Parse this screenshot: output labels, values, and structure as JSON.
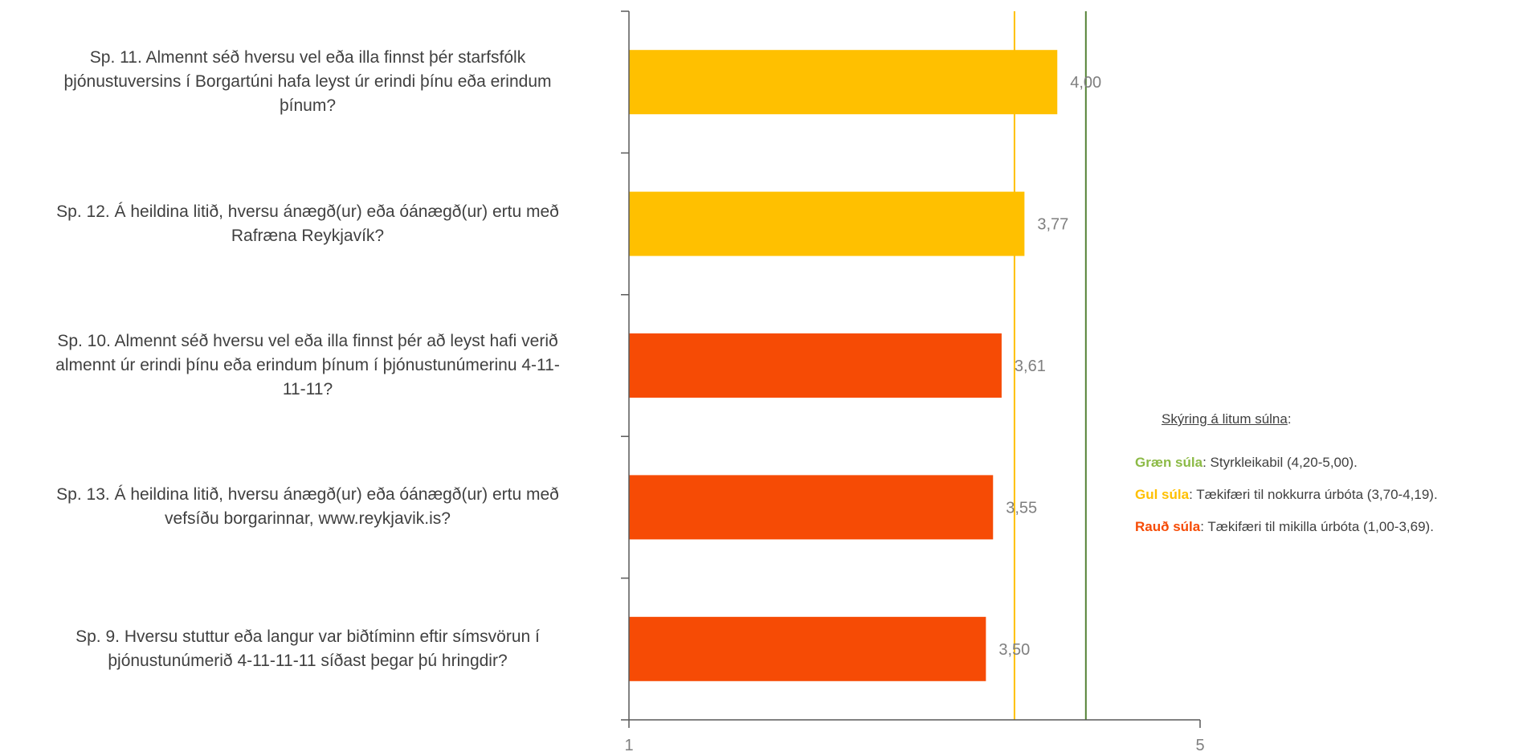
{
  "chart_data": {
    "type": "bar",
    "orientation": "horizontal",
    "categories": [
      "Sp. 11. Almennt séð hversu vel eða illa finnst þér starfsfólk\nþjónustuversins í Borgartúni hafa leyst úr erindi þínu eða erindum\nþínum?",
      "Sp. 12. Á heildina litið, hversu ánægð(ur) eða óánægð(ur) ertu með\nRafræna Reykjavík?",
      "Sp. 10. Almennt séð hversu vel eða illa finnst þér að leyst hafi verið\nalmennt úr erindi þínu eða erindum þínum í þjónustunúmerinu 4-11-\n11-11?",
      "Sp. 13. Á heildina litið, hversu ánægð(ur) eða óánægð(ur) ertu með\nvefsíðu borgarinnar, www.reykjavik.is?",
      "Sp. 9. Hversu stuttur eða langur var biðtíminn eftir símsvörun í\nþjónustunúmerið 4-11-11-11 síðast þegar þú hringdir?"
    ],
    "values": [
      4.0,
      3.77,
      3.61,
      3.55,
      3.5
    ],
    "value_labels": [
      "4,00",
      "3,77",
      "3,61",
      "3,55",
      "3,50"
    ],
    "bar_colors": [
      "#ffc000",
      "#ffc000",
      "#f64b05",
      "#f64b05",
      "#f64b05"
    ],
    "xlim": [
      1,
      5
    ],
    "x_ticks": [
      "1",
      "5"
    ],
    "reference_lines": [
      {
        "value": 3.7,
        "color": "#ffc000"
      },
      {
        "value": 4.2,
        "color": "#548235"
      }
    ],
    "grid": false
  },
  "legend": {
    "title": "Skýring á litum súlna",
    "title_suffix": ":",
    "items": [
      {
        "key": "Græn súla",
        "text": ": Styrkleikabil (4,20-5,00).",
        "color": "#8cba46"
      },
      {
        "key": "Gul súla",
        "text": ": Tækifæri til nokkurra úrbóta (3,70-4,19).",
        "color": "#ffc000"
      },
      {
        "key": "Rauð súla",
        "text": ": Tækifæri til mikilla úrbóta (1,00-3,69).",
        "color": "#f64b05"
      }
    ]
  }
}
